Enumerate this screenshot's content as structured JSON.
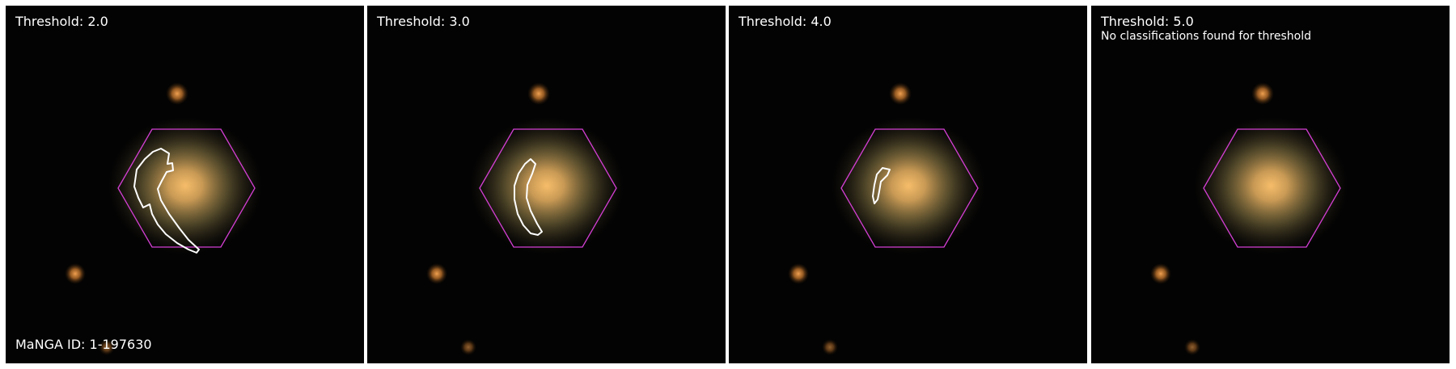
{
  "panels": [
    {
      "title": "Threshold: 2.0",
      "note": "",
      "outline": "large",
      "footer": "MaNGA ID: 1-197630"
    },
    {
      "title": "Threshold: 3.0",
      "note": "",
      "outline": "medium",
      "footer": ""
    },
    {
      "title": "Threshold: 4.0",
      "note": "",
      "outline": "small",
      "footer": ""
    },
    {
      "title": "Threshold: 5.0",
      "note": "No classifications found for threshold",
      "outline": "none",
      "footer": ""
    }
  ],
  "colors": {
    "background": "#030303",
    "hexagon": "#d43fd4",
    "outline": "#ffffff",
    "galaxy_core": "#f0a850",
    "star": "#e08a35"
  }
}
